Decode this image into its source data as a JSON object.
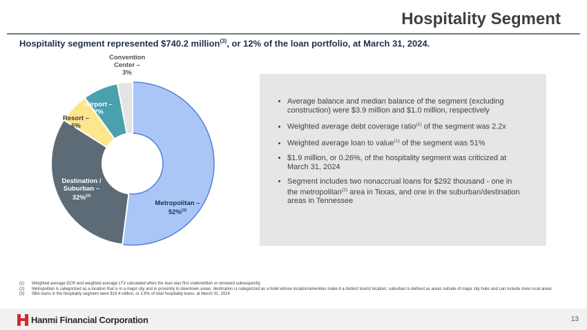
{
  "header": {
    "title": "Hospitality Segment",
    "subtitle": {
      "before": "Hospitality segment represented $740.2 million",
      "sup": "(3)",
      "after": ", or 12% of the loan portfolio, at March 31, 2024."
    }
  },
  "chart_data": {
    "type": "donut",
    "categories": [
      "Metropolitan –",
      "Destination / Suburban –",
      "Resort –",
      "Airport –",
      "Convention Center –"
    ],
    "values": [
      52,
      32,
      6,
      7,
      3
    ],
    "value_labels": [
      "52%",
      "32%",
      "6%",
      "7%",
      "3%"
    ],
    "label_refs": {
      "0": "(2)",
      "1": "(2)"
    },
    "colors": [
      "#a9c6f7",
      "#5d6b77",
      "#fde68c",
      "#4aa0ad",
      "#e4e4e4"
    ]
  },
  "bullets": [
    {
      "text": "Average balance and median balance of the segment (excluding construction) were $3.9 million and $1.0 million, respectively"
    },
    {
      "before": "Weighted average debt coverage ratio",
      "sup": "(1)",
      "after": " of the segment was 2.2x"
    },
    {
      "before": "Weighted average loan to value",
      "sup": "(1)",
      "after": " of the segment was 51%"
    },
    {
      "text": "$1.9 million, or 0.26%, of the hospitality segment was criticized at March 31, 2024"
    },
    {
      "before": "Segment includes two nonaccrual loans for $292 thousand - one in the metropolitan",
      "sup": "(2)",
      "after": " area in Texas, and one in the suburban/destination areas in Tennessee"
    }
  ],
  "footnotes": [
    {
      "num": "(1)",
      "text": "Weighted average DCR and weighted average LTV calculated when the loan was first underwritten or renewed subsequently"
    },
    {
      "num": "(2)",
      "text": "Metropolitan is categorized as a location that is in a major city and in proximity to downtown areas; destination is categorized as a hotel whose location/amenities make it a distinct tourist location; suburban is defined as areas outside of major city hubs and can include more rural areas"
    },
    {
      "num": "(3)",
      "text": "SBA loans in the hospitality segment were $19.4 million, or 2.6% of total hospitality loans, at March 31, 2024"
    }
  ],
  "footer": {
    "company": "Hanmi Financial Corporation",
    "page": "13"
  }
}
